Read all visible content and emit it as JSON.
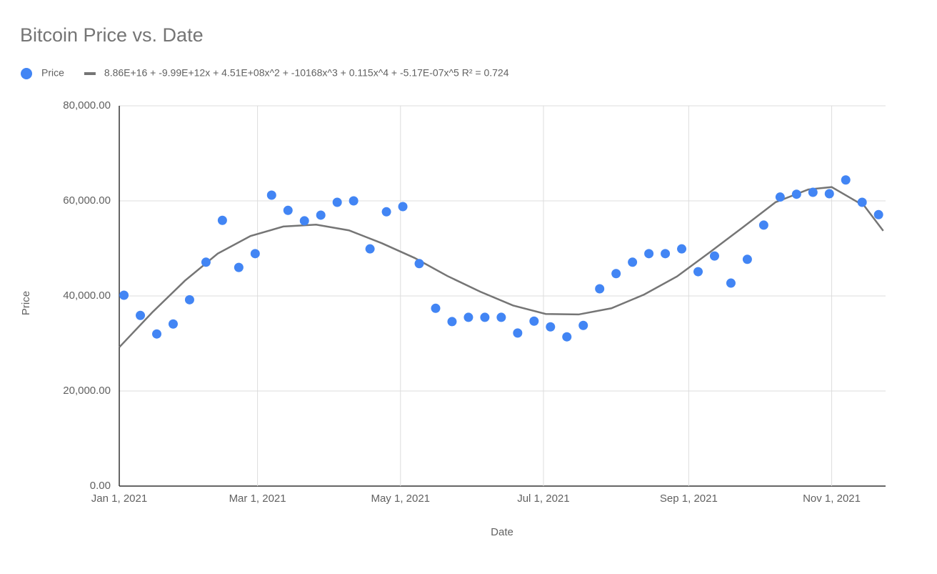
{
  "chart_data": {
    "type": "scatter",
    "title": "Bitcoin Price vs. Date",
    "x_label": "Date",
    "y_label": "Price",
    "grid": true,
    "legend": "top",
    "xlim": [
      "2021-01-01",
      "2021-11-24"
    ],
    "xticks": [
      {
        "value": "2021-01-01",
        "label": "Jan 1, 2021"
      },
      {
        "value": "2021-03-01",
        "label": "Mar 1, 2021"
      },
      {
        "value": "2021-05-01",
        "label": "May 1, 2021"
      },
      {
        "value": "2021-07-01",
        "label": "Jul 1, 2021"
      },
      {
        "value": "2021-09-01",
        "label": "Sep 1, 2021"
      },
      {
        "value": "2021-11-01",
        "label": "Nov 1, 2021"
      }
    ],
    "ylim": [
      0,
      80000
    ],
    "yticks": [
      {
        "value": 0,
        "label": "0.00"
      },
      {
        "value": 20000,
        "label": "20,000.00"
      },
      {
        "value": 40000,
        "label": "40,000.00"
      },
      {
        "value": 60000,
        "label": "60,000.00"
      },
      {
        "value": 80000,
        "label": "80,000.00"
      }
    ],
    "series": [
      {
        "name": "Price",
        "type": "scatter",
        "color": "#4285f4",
        "x": [
          "2021-01-03",
          "2021-01-10",
          "2021-01-17",
          "2021-01-24",
          "2021-01-31",
          "2021-02-07",
          "2021-02-14",
          "2021-02-21",
          "2021-02-28",
          "2021-03-07",
          "2021-03-14",
          "2021-03-21",
          "2021-03-28",
          "2021-04-04",
          "2021-04-11",
          "2021-04-18",
          "2021-04-25",
          "2021-05-02",
          "2021-05-09",
          "2021-05-16",
          "2021-05-23",
          "2021-05-30",
          "2021-06-06",
          "2021-06-13",
          "2021-06-20",
          "2021-06-27",
          "2021-07-04",
          "2021-07-11",
          "2021-07-18",
          "2021-07-25",
          "2021-08-01",
          "2021-08-08",
          "2021-08-15",
          "2021-08-22",
          "2021-08-29",
          "2021-09-05",
          "2021-09-12",
          "2021-09-19",
          "2021-09-26",
          "2021-10-03",
          "2021-10-10",
          "2021-10-17",
          "2021-10-24",
          "2021-10-31",
          "2021-11-07",
          "2021-11-14",
          "2021-11-21"
        ],
        "values": [
          40150,
          35900,
          32000,
          34100,
          39200,
          47100,
          55900,
          46000,
          48900,
          61200,
          58000,
          55800,
          57000,
          59700,
          60000,
          49900,
          57700,
          58800,
          46800,
          37400,
          34600,
          35500,
          35500,
          35500,
          32200,
          34700,
          33500,
          31400,
          33800,
          41500,
          44700,
          47100,
          48900,
          48900,
          49900,
          45100,
          48400,
          42700,
          47700,
          54900,
          60800,
          61400,
          61800,
          61500,
          64400,
          59700,
          57100
        ]
      },
      {
        "name": "8.86E+16 + -9.99E+12x + 4.51E+08x^2 + -10168x^3 + 0.115x^4 + -5.17E-07x^5 R² = 0.724",
        "type": "line",
        "color": "#757575",
        "x": [
          "2021-01-01",
          "2021-01-15",
          "2021-01-29",
          "2021-02-12",
          "2021-02-26",
          "2021-03-12",
          "2021-03-26",
          "2021-04-09",
          "2021-04-23",
          "2021-05-07",
          "2021-05-21",
          "2021-06-04",
          "2021-06-18",
          "2021-07-02",
          "2021-07-16",
          "2021-07-30",
          "2021-08-13",
          "2021-08-27",
          "2021-09-10",
          "2021-09-24",
          "2021-10-08",
          "2021-10-22",
          "2021-11-01",
          "2021-11-15",
          "2021-11-23"
        ],
        "values": [
          29200,
          36500,
          43200,
          48900,
          52600,
          54600,
          55000,
          53800,
          51100,
          48000,
          44200,
          40900,
          38000,
          36200,
          36100,
          37400,
          40300,
          44100,
          49200,
          54400,
          59700,
          62400,
          62900,
          58900,
          53700
        ]
      }
    ]
  }
}
